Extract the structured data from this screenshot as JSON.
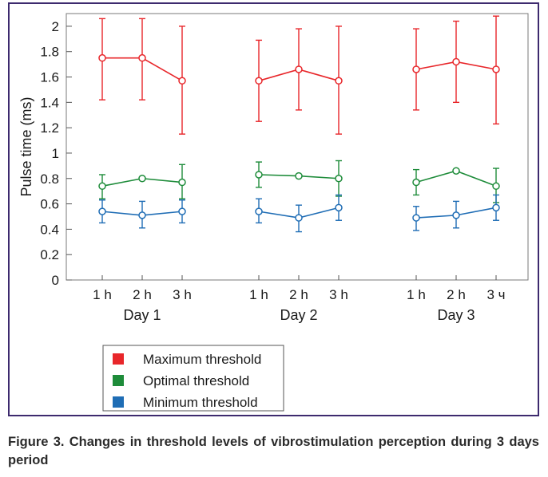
{
  "chart_data": {
    "type": "line",
    "ylabel": "Pulse time (ms)",
    "ylim": [
      0,
      2.1
    ],
    "yticks": [
      "0",
      "0.2",
      "0.4",
      "0.6",
      "0.8",
      "1",
      "1.2",
      "1.4",
      "1.6",
      "1.8",
      "2"
    ],
    "groups": [
      {
        "label": "Day 1",
        "categories": [
          "1 h",
          "2 h",
          "3 h"
        ]
      },
      {
        "label": "Day 2",
        "categories": [
          "1 h",
          "2 h",
          "3 h"
        ]
      },
      {
        "label": "Day 3",
        "categories": [
          "1 h",
          "2 h",
          "3 ч"
        ]
      }
    ],
    "series": [
      {
        "name": "Maximum threshold",
        "color": "#e8262a",
        "values": [
          1.75,
          1.75,
          1.57,
          1.57,
          1.66,
          1.57,
          1.66,
          1.72,
          1.66
        ],
        "lower": [
          1.42,
          1.42,
          1.15,
          1.25,
          1.34,
          1.15,
          1.34,
          1.4,
          1.23
        ],
        "upper": [
          2.06,
          2.06,
          2.0,
          1.89,
          1.98,
          2.0,
          1.98,
          2.04,
          2.08
        ]
      },
      {
        "name": "Optimal threshold",
        "color": "#1e8c3a",
        "values": [
          0.74,
          0.8,
          0.77,
          0.83,
          0.82,
          0.8,
          0.77,
          0.86,
          0.74
        ],
        "lower": [
          0.64,
          0.8,
          0.64,
          0.73,
          0.82,
          0.66,
          0.67,
          0.86,
          0.61
        ],
        "upper": [
          0.83,
          0.8,
          0.91,
          0.93,
          0.82,
          0.94,
          0.87,
          0.86,
          0.88
        ]
      },
      {
        "name": "Minimum threshold",
        "color": "#1f6db5",
        "values": [
          0.54,
          0.51,
          0.54,
          0.54,
          0.49,
          0.57,
          0.49,
          0.51,
          0.57
        ],
        "lower": [
          0.45,
          0.41,
          0.45,
          0.45,
          0.38,
          0.47,
          0.39,
          0.41,
          0.47
        ],
        "upper": [
          0.63,
          0.62,
          0.63,
          0.64,
          0.59,
          0.67,
          0.58,
          0.62,
          0.67
        ]
      }
    ],
    "legend": "bottom-center",
    "grid": false
  },
  "caption": "Figure 3. Changes in threshold levels of vibrostimulation perception during 3 days period"
}
